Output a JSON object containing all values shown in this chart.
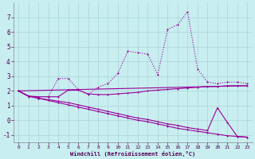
{
  "background_color": "#c8eef0",
  "grid_color": "#b0d8dc",
  "line_color": "#990099",
  "xlabel": "Windchill (Refroidissement éolien,°C)",
  "xlim": [
    -0.5,
    23.5
  ],
  "ylim": [
    -1.5,
    8.0
  ],
  "yticks": [
    -1,
    0,
    1,
    2,
    3,
    4,
    5,
    6,
    7
  ],
  "xticks": [
    0,
    1,
    2,
    3,
    4,
    5,
    6,
    7,
    8,
    9,
    10,
    11,
    12,
    13,
    14,
    15,
    16,
    17,
    18,
    19,
    20,
    21,
    22,
    23
  ],
  "series1_x": [
    0,
    1,
    2,
    3,
    4,
    5,
    6,
    7,
    8,
    9,
    10,
    11,
    12,
    13,
    14,
    15,
    16,
    17,
    18,
    19,
    20,
    21,
    22,
    23
  ],
  "series1_y": [
    2.0,
    1.6,
    1.6,
    1.6,
    2.85,
    2.85,
    2.1,
    1.75,
    2.25,
    2.5,
    3.2,
    4.7,
    4.6,
    4.5,
    3.1,
    6.2,
    6.5,
    7.4,
    3.5,
    2.6,
    2.5,
    2.6,
    2.6,
    2.5
  ],
  "series2_x": [
    0,
    1,
    2,
    3,
    4,
    5,
    6,
    7,
    8,
    9,
    10,
    11,
    12,
    13,
    14,
    15,
    16,
    17,
    18,
    19,
    20,
    21,
    22,
    23
  ],
  "series2_y": [
    2.0,
    1.65,
    1.6,
    1.6,
    1.6,
    2.05,
    2.05,
    1.8,
    1.75,
    1.75,
    1.8,
    1.85,
    1.9,
    2.0,
    2.05,
    2.1,
    2.15,
    2.2,
    2.25,
    2.3,
    2.3,
    2.35,
    2.35,
    2.35
  ],
  "series3_x": [
    0,
    23
  ],
  "series3_y": [
    2.0,
    2.35
  ],
  "series4_x": [
    0,
    1,
    2,
    3,
    4,
    5,
    6,
    7,
    8,
    9,
    10,
    11,
    12,
    13,
    14,
    15,
    16,
    17,
    18,
    19,
    20,
    21,
    22,
    23
  ],
  "series4_y": [
    2.0,
    1.65,
    1.5,
    1.4,
    1.3,
    1.2,
    1.05,
    0.9,
    0.75,
    0.6,
    0.45,
    0.3,
    0.15,
    0.05,
    -0.1,
    -0.25,
    -0.35,
    -0.5,
    -0.6,
    -0.7,
    0.85,
    -0.15,
    -1.1,
    -1.15
  ],
  "series5_x": [
    0,
    1,
    2,
    3,
    4,
    5,
    6,
    7,
    8,
    9,
    10,
    11,
    12,
    13,
    14,
    15,
    16,
    17,
    18,
    19,
    20,
    21,
    22,
    23
  ],
  "series5_y": [
    2.0,
    1.65,
    1.5,
    1.35,
    1.2,
    1.05,
    0.9,
    0.75,
    0.6,
    0.45,
    0.3,
    0.15,
    0.0,
    -0.1,
    -0.25,
    -0.4,
    -0.55,
    -0.65,
    -0.75,
    -0.85,
    -0.95,
    -1.05,
    -1.1,
    -1.15
  ]
}
